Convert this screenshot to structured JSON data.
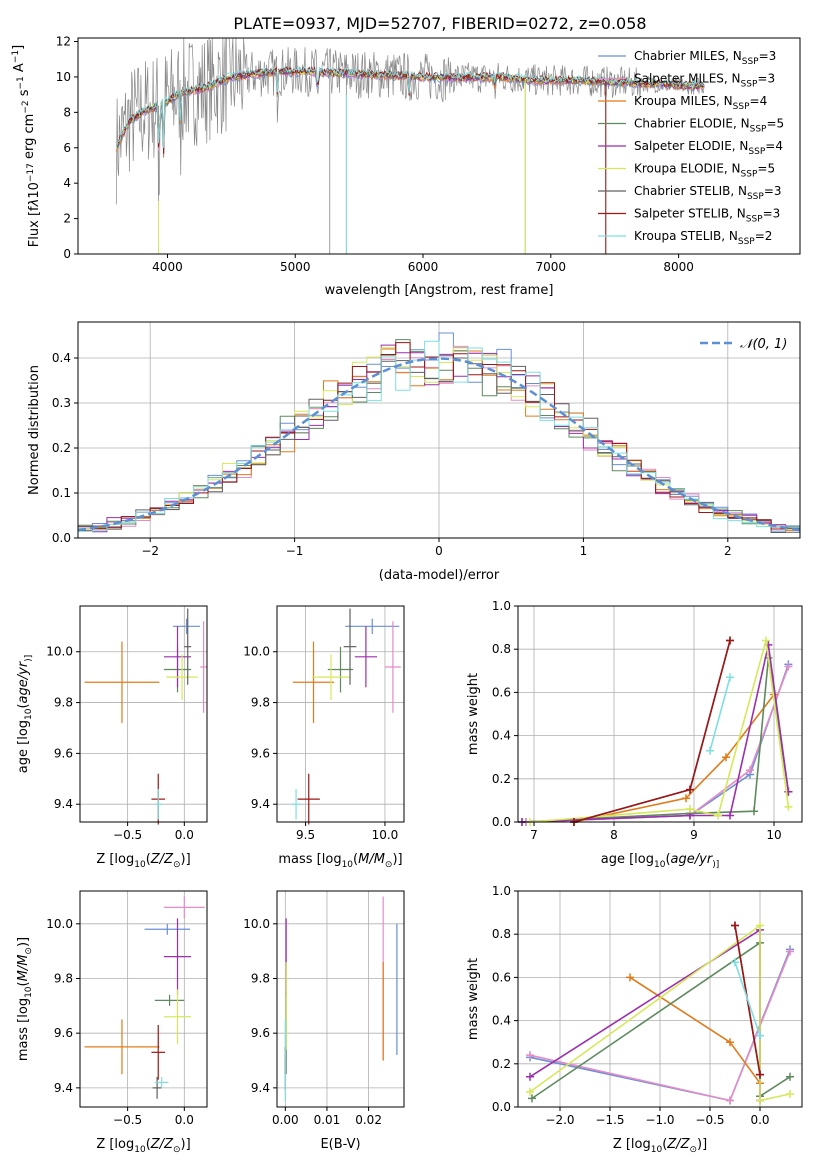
{
  "title": "PLATE=0937, MJD=52707, FIBERID=0272, z=0.058",
  "colors": {
    "Chabrier MILES": "#6b8fd6",
    "Salpeter MILES": "#e58cc7",
    "Kroupa MILES": "#e07b1b",
    "Chabrier ELODIE": "#5e8a5e",
    "Salpeter ELODIE": "#9b2fae",
    "Kroupa ELODIE": "#d6e85a",
    "Chabrier STELIB": "#606060",
    "Salpeter STELIB": "#a01515",
    "Kroupa STELIB": "#7edfe0",
    "data": "#888888",
    "normal": "#5b8fd6"
  },
  "chart_data": [
    {
      "id": "spectrum",
      "type": "line",
      "xlabel": "wavelength [Angstrom, rest frame]",
      "ylabel_parts": [
        "Flux [f",
        "λ",
        "10",
        "−17",
        " erg cm",
        "−2",
        " s",
        "−1",
        " A",
        "−1",
        "]"
      ],
      "xlim": [
        3300,
        8950
      ],
      "ylim": [
        0,
        12.2
      ],
      "xticks": [
        4000,
        5000,
        6000,
        7000,
        8000
      ],
      "yticks": [
        0,
        2,
        4,
        6,
        8,
        10,
        12
      ],
      "legend_position": "right",
      "legend": [
        {
          "model": "Chabrier MILES",
          "nssp": 3
        },
        {
          "model": "Salpeter MILES",
          "nssp": 3
        },
        {
          "model": "Kroupa MILES",
          "nssp": 4
        },
        {
          "model": "Chabrier ELODIE",
          "nssp": 5
        },
        {
          "model": "Salpeter ELODIE",
          "nssp": 4
        },
        {
          "model": "Kroupa ELODIE",
          "nssp": 5
        },
        {
          "model": "Chabrier STELIB",
          "nssp": 3
        },
        {
          "model": "Salpeter STELIB",
          "nssp": 3
        },
        {
          "model": "Kroupa STELIB",
          "nssp": 2
        }
      ],
      "legend_sub": "SSP",
      "continuum": [
        [
          3600,
          6.0
        ],
        [
          3700,
          7.5
        ],
        [
          3800,
          8.0
        ],
        [
          3900,
          8.3
        ],
        [
          4000,
          8.6
        ],
        [
          4100,
          9.1
        ],
        [
          4300,
          9.4
        ],
        [
          4500,
          10.0
        ],
        [
          4700,
          10.2
        ],
        [
          4900,
          10.3
        ],
        [
          5100,
          10.3
        ],
        [
          5400,
          10.2
        ],
        [
          5700,
          10.1
        ],
        [
          6000,
          10.0
        ],
        [
          6300,
          9.95
        ],
        [
          6600,
          10.0
        ],
        [
          6900,
          9.8
        ],
        [
          7200,
          9.8
        ],
        [
          7500,
          9.7
        ],
        [
          7800,
          9.6
        ],
        [
          8000,
          9.5
        ],
        [
          8200,
          9.5
        ]
      ],
      "absorption_lines": [
        [
          3934,
          2.5
        ],
        [
          3969,
          4.5
        ],
        [
          4102,
          6.5
        ],
        [
          4861,
          8.5
        ],
        [
          5175,
          8.0
        ],
        [
          5893,
          8.0
        ],
        [
          6563,
          9.0
        ]
      ],
      "spikes": [
        [
          3930,
          0.0
        ],
        [
          5270,
          0.0
        ],
        [
          5400,
          0.0
        ],
        [
          6800,
          0.0
        ],
        [
          7430,
          0.0
        ]
      ]
    },
    {
      "id": "residuals",
      "type": "histogram",
      "xlabel": "(data-model)/error",
      "ylabel": "Normed distribution",
      "xlim": [
        -2.5,
        2.5
      ],
      "ylim": [
        0,
        0.48
      ],
      "xticks": [
        -2,
        -1,
        0,
        1,
        2
      ],
      "yticks": [
        0.0,
        0.1,
        0.2,
        0.3,
        0.4
      ],
      "legend_position": "top-right",
      "legend": [
        "𝒩(0, 1)"
      ],
      "bin_width": 0.1,
      "normal": {
        "mu": 0,
        "sigma": 1
      }
    },
    {
      "id": "age-vs-Z",
      "type": "scatter",
      "xlabel_parts": [
        "Z [log",
        "10",
        "(",
        "Z/Z",
        "⊙",
        ")]"
      ],
      "ylabel_parts": [
        "age  [log",
        "10",
        "(",
        "age/yr",
        ")]"
      ],
      "xlim": [
        -0.92,
        0.2
      ],
      "ylim": [
        9.33,
        10.18
      ],
      "xticks": [
        -0.5,
        0.0
      ],
      "yticks": [
        9.4,
        9.6,
        9.8,
        10.0
      ],
      "points": [
        {
          "model": "Chabrier MILES",
          "x": 0.02,
          "xerr": 0.12,
          "y": 10.1,
          "yerr": 0.03
        },
        {
          "model": "Salpeter MILES",
          "x": 0.17,
          "xerr": 0.03,
          "y": 9.94,
          "yerr": 0.18
        },
        {
          "model": "Kroupa MILES",
          "x": -0.55,
          "xerr": 0.33,
          "y": 9.88,
          "yerr": 0.16
        },
        {
          "model": "Chabrier ELODIE",
          "x": -0.06,
          "xerr": 0.12,
          "y": 9.93,
          "yerr": 0.09
        },
        {
          "model": "Salpeter ELODIE",
          "x": -0.06,
          "xerr": 0.12,
          "y": 9.98,
          "yerr": 0.12
        },
        {
          "model": "Kroupa ELODIE",
          "x": -0.02,
          "xerr": 0.14,
          "y": 9.9,
          "yerr": 0.09
        },
        {
          "model": "Chabrier STELIB",
          "x": 0.03,
          "xerr": 0.03,
          "y": 10.02,
          "yerr": 0.15
        },
        {
          "model": "Salpeter STELIB",
          "x": -0.23,
          "xerr": 0.06,
          "y": 9.42,
          "yerr": 0.1
        },
        {
          "model": "Kroupa STELIB",
          "x": -0.23,
          "xerr": 0.03,
          "y": 9.4,
          "yerr": 0.06
        }
      ]
    },
    {
      "id": "age-vs-mass",
      "type": "scatter",
      "xlabel_parts": [
        "mass [log",
        "10",
        "(",
        "M/M",
        "⊙",
        ")]"
      ],
      "xlim": [
        9.32,
        10.12
      ],
      "ylim": [
        9.33,
        10.18
      ],
      "xticks": [
        9.5,
        10.0
      ],
      "yticks": [
        9.4,
        9.6,
        9.8,
        10.0
      ],
      "points": [
        {
          "model": "Chabrier MILES",
          "x": 9.92,
          "xerr": 0.17,
          "y": 10.1,
          "yerr": 0.03
        },
        {
          "model": "Salpeter MILES",
          "x": 10.05,
          "xerr": 0.05,
          "y": 9.94,
          "yerr": 0.18
        },
        {
          "model": "Kroupa MILES",
          "x": 9.55,
          "xerr": 0.13,
          "y": 9.88,
          "yerr": 0.16
        },
        {
          "model": "Chabrier ELODIE",
          "x": 9.72,
          "xerr": 0.08,
          "y": 9.93,
          "yerr": 0.09
        },
        {
          "model": "Salpeter ELODIE",
          "x": 9.88,
          "xerr": 0.07,
          "y": 9.98,
          "yerr": 0.12
        },
        {
          "model": "Kroupa ELODIE",
          "x": 9.66,
          "xerr": 0.12,
          "y": 9.9,
          "yerr": 0.09
        },
        {
          "model": "Chabrier STELIB",
          "x": 9.78,
          "xerr": 0.04,
          "y": 10.02,
          "yerr": 0.15
        },
        {
          "model": "Salpeter STELIB",
          "x": 9.52,
          "xerr": 0.07,
          "y": 9.42,
          "yerr": 0.1
        },
        {
          "model": "Kroupa STELIB",
          "x": 9.44,
          "xerr": 0.03,
          "y": 9.4,
          "yerr": 0.06
        }
      ]
    },
    {
      "id": "mw-vs-age",
      "type": "line",
      "xlabel_parts": [
        "age  [log",
        "10",
        "(",
        "age/yr",
        ")]"
      ],
      "ylabel": "mass weight",
      "xlim": [
        6.8,
        10.35
      ],
      "ylim": [
        0,
        1.0
      ],
      "xticks": [
        7,
        8,
        9,
        10
      ],
      "yticks": [
        0.0,
        0.2,
        0.4,
        0.6,
        0.8,
        1.0
      ],
      "series": [
        {
          "model": "Chabrier MILES",
          "x": [
            6.9,
            8.95,
            9.7,
            10.18
          ],
          "y": [
            0.0,
            0.03,
            0.22,
            0.73
          ]
        },
        {
          "model": "Salpeter MILES",
          "x": [
            6.9,
            8.95,
            9.7,
            10.18
          ],
          "y": [
            0.0,
            0.03,
            0.24,
            0.72
          ]
        },
        {
          "model": "Kroupa MILES",
          "x": [
            7.5,
            8.9,
            9.4,
            10.0
          ],
          "y": [
            0.0,
            0.11,
            0.3,
            0.59
          ]
        },
        {
          "model": "Chabrier ELODIE",
          "x": [
            6.85,
            8.95,
            9.75,
            9.93,
            10.18
          ],
          "y": [
            0.0,
            0.04,
            0.05,
            0.76,
            0.14
          ]
        },
        {
          "model": "Salpeter ELODIE",
          "x": [
            6.85,
            8.95,
            9.45,
            9.93,
            10.18
          ],
          "y": [
            0.0,
            0.03,
            0.03,
            0.82,
            0.14
          ]
        },
        {
          "model": "Kroupa ELODIE",
          "x": [
            6.95,
            8.95,
            9.3,
            9.9,
            10.18
          ],
          "y": [
            0.0,
            0.06,
            0.03,
            0.84,
            0.07
          ]
        },
        {
          "model": "Chabrier STELIB",
          "x": [
            7.5,
            8.95,
            9.45
          ],
          "y": [
            0.0,
            0.15,
            0.84
          ]
        },
        {
          "model": "Salpeter STELIB",
          "x": [
            7.5,
            8.95,
            9.45
          ],
          "y": [
            0.0,
            0.15,
            0.84
          ]
        },
        {
          "model": "Kroupa STELIB",
          "x": [
            9.2,
            9.45
          ],
          "y": [
            0.33,
            0.67
          ]
        }
      ]
    },
    {
      "id": "mass-vs-Z",
      "type": "scatter",
      "xlabel_parts": [
        "Z [log",
        "10",
        "(",
        "Z/Z",
        "⊙",
        ")]"
      ],
      "ylabel_parts": [
        "mass [log",
        "10",
        "(",
        "M/M",
        "⊙",
        ")]"
      ],
      "xlim": [
        -0.92,
        0.2
      ],
      "ylim": [
        9.33,
        10.12
      ],
      "xticks": [
        -0.5,
        0.0
      ],
      "yticks": [
        9.4,
        9.6,
        9.8,
        10.0
      ],
      "points": [
        {
          "model": "Chabrier MILES",
          "x": -0.15,
          "xerr": 0.2,
          "y": 9.98,
          "yerr": 0.02
        },
        {
          "model": "Salpeter MILES",
          "x": 0.0,
          "xerr": 0.18,
          "y": 10.06,
          "yerr": 0.04
        },
        {
          "model": "Kroupa MILES",
          "x": -0.55,
          "xerr": 0.33,
          "y": 9.55,
          "yerr": 0.1
        },
        {
          "model": "Chabrier ELODIE",
          "x": -0.13,
          "xerr": 0.13,
          "y": 9.72,
          "yerr": 0.02
        },
        {
          "model": "Salpeter ELODIE",
          "x": -0.06,
          "xerr": 0.12,
          "y": 9.88,
          "yerr": 0.14
        },
        {
          "model": "Kroupa ELODIE",
          "x": -0.06,
          "xerr": 0.12,
          "y": 9.66,
          "yerr": 0.1
        },
        {
          "model": "Chabrier STELIB",
          "x": -0.24,
          "xerr": 0.04,
          "y": 9.4,
          "yerr": 0.04
        },
        {
          "model": "Salpeter STELIB",
          "x": -0.23,
          "xerr": 0.06,
          "y": 9.53,
          "yerr": 0.1
        },
        {
          "model": "Kroupa STELIB",
          "x": -0.2,
          "xerr": 0.06,
          "y": 9.42,
          "yerr": 0.02
        }
      ]
    },
    {
      "id": "mass-vs-ebv",
      "type": "scatter",
      "xlabel": "E(B-V)",
      "xlim": [
        -0.002,
        0.0285
      ],
      "ylim": [
        9.33,
        10.12
      ],
      "xticks": [
        0.0,
        0.01,
        0.02
      ],
      "xticklabels": [
        "0.00",
        "0.01",
        "0.02"
      ],
      "yticks": [
        9.4,
        9.6,
        9.8,
        10.0
      ],
      "points": [
        {
          "model": "Chabrier MILES",
          "x": 0.0268,
          "xerr": 0.0,
          "y": 9.76,
          "yerr": 0.24
        },
        {
          "model": "Salpeter MILES",
          "x": 0.0235,
          "xerr": 0.0,
          "y": 9.8,
          "yerr": 0.3
        },
        {
          "model": "Kroupa MILES",
          "x": 0.0235,
          "xerr": 0.0,
          "y": 9.68,
          "yerr": 0.18
        },
        {
          "model": "Chabrier ELODIE",
          "x": 0.0002,
          "xerr": 0.0,
          "y": 9.6,
          "yerr": 0.15
        },
        {
          "model": "Salpeter ELODIE",
          "x": 0.0002,
          "xerr": 0.0,
          "y": 9.88,
          "yerr": 0.14
        },
        {
          "model": "Kroupa ELODIE",
          "x": 0.0002,
          "xerr": 0.0,
          "y": 9.7,
          "yerr": 0.16
        },
        {
          "model": "Chabrier STELIB",
          "x": 0.0,
          "xerr": 0.0,
          "y": 9.45,
          "yerr": 0.06
        },
        {
          "model": "Salpeter STELIB",
          "x": 0.0,
          "xerr": 0.0,
          "y": 9.5,
          "yerr": 0.05
        },
        {
          "model": "Kroupa STELIB",
          "x": 0.0,
          "xerr": 0.0,
          "y": 9.5,
          "yerr": 0.15
        }
      ]
    },
    {
      "id": "mw-vs-Z",
      "type": "line",
      "xlabel_parts": [
        "Z [log",
        "10",
        "(",
        "Z/Z",
        "⊙",
        ")]"
      ],
      "ylabel": "mass weight",
      "xlim": [
        -2.42,
        0.42
      ],
      "ylim": [
        0,
        1.0
      ],
      "xticks": [
        -2.0,
        -1.5,
        -1.0,
        -0.5,
        0.0
      ],
      "xticklabels": [
        "−2.0",
        "−1.5",
        "−1.0",
        "−0.5",
        "0.0"
      ],
      "yticks": [
        0.0,
        0.2,
        0.4,
        0.6,
        0.8,
        1.0
      ],
      "series": [
        {
          "model": "Chabrier MILES",
          "x": [
            -2.3,
            -0.3,
            0.3
          ],
          "y": [
            0.23,
            0.03,
            0.73
          ]
        },
        {
          "model": "Salpeter MILES",
          "x": [
            -2.3,
            -0.3,
            0.3
          ],
          "y": [
            0.24,
            0.03,
            0.72
          ]
        },
        {
          "model": "Kroupa MILES",
          "x": [
            -1.3,
            -0.3,
            0.0
          ],
          "y": [
            0.6,
            0.3,
            0.11
          ]
        },
        {
          "model": "Chabrier ELODIE",
          "x": [
            -2.28,
            0.0,
            0.0,
            0.3
          ],
          "y": [
            0.04,
            0.76,
            0.05,
            0.14
          ]
        },
        {
          "model": "Salpeter ELODIE",
          "x": [
            -2.3,
            0.0,
            0.0
          ],
          "y": [
            0.14,
            0.82,
            0.03
          ]
        },
        {
          "model": "Kroupa ELODIE",
          "x": [
            -2.3,
            0.0,
            0.0,
            0.3
          ],
          "y": [
            0.07,
            0.84,
            0.03,
            0.06
          ]
        },
        {
          "model": "Chabrier STELIB",
          "x": [
            -0.25,
            0.0
          ],
          "y": [
            0.84,
            0.15
          ]
        },
        {
          "model": "Salpeter STELIB",
          "x": [
            -0.25,
            0.0
          ],
          "y": [
            0.84,
            0.15
          ]
        },
        {
          "model": "Kroupa STELIB",
          "x": [
            -0.25,
            0.0
          ],
          "y": [
            0.67,
            0.33
          ]
        }
      ]
    }
  ]
}
